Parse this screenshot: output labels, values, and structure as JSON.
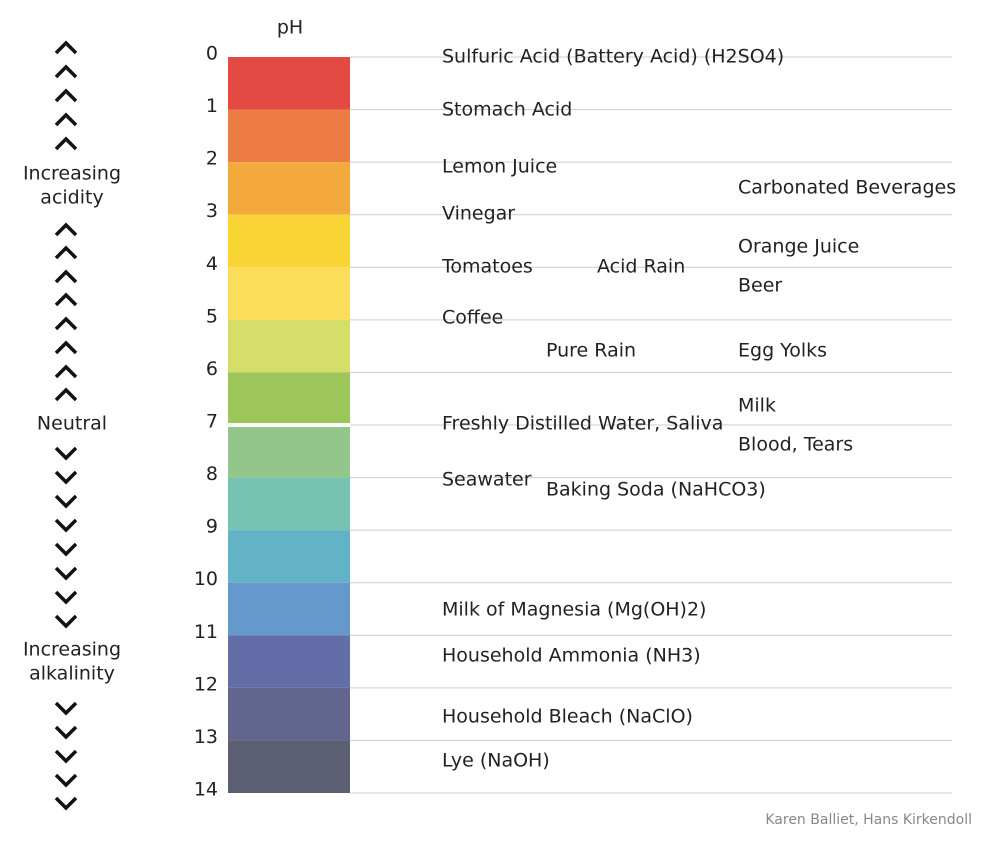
{
  "scale": {
    "title": "pH",
    "ticks": [
      0,
      1,
      2,
      3,
      4,
      5,
      6,
      7,
      8,
      9,
      10,
      11,
      12,
      13,
      14
    ]
  },
  "left_labels": {
    "acidity": [
      "Increasing",
      "acidity"
    ],
    "neutral": "Neutral",
    "alkalinity": [
      "Increasing",
      "alkalinity"
    ]
  },
  "substances": [
    "Sulfuric Acid (Battery Acid) (H2SO4)",
    "Stomach Acid",
    "Lemon Juice",
    "Carbonated Beverages",
    "Vinegar",
    "Orange Juice",
    "Tomatoes",
    "Acid Rain",
    "Beer",
    "Coffee",
    "Pure Rain",
    "Egg Yolks",
    "Milk",
    "Freshly Distilled Water, Saliva",
    "Blood, Tears",
    "Seawater",
    "Baking Soda (NaHCO3)",
    "Milk of Magnesia (Mg(OH)2)",
    "Household Ammonia (NH3)",
    "Household Bleach (NaClO)",
    "Lye (NaOH)"
  ],
  "credit": "Karen Balliet, Hans Kirkendoll"
}
